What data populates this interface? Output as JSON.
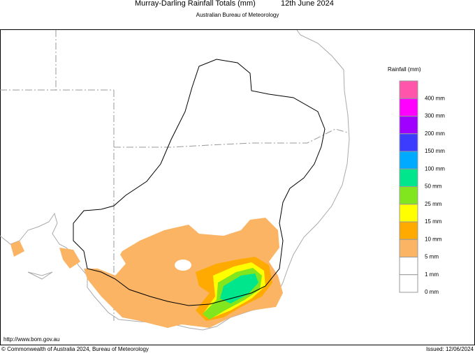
{
  "header": {
    "title": "Murray-Darling Rainfall Totals (mm)",
    "date": "12th June 2024",
    "subtitle": "Australian Bureau of Meteorology"
  },
  "legend": {
    "title": "Rainfall (mm)",
    "items": [
      {
        "label": "400 mm",
        "color": "#ff55aa"
      },
      {
        "label": "300 mm",
        "color": "#ff00ff"
      },
      {
        "label": "200 mm",
        "color": "#a000ff"
      },
      {
        "label": "150 mm",
        "color": "#3c3cff"
      },
      {
        "label": "100 mm",
        "color": "#00aaff"
      },
      {
        "label": "50 mm",
        "color": "#00e68c"
      },
      {
        "label": "25 mm",
        "color": "#82e61e"
      },
      {
        "label": "15 mm",
        "color": "#ffff00"
      },
      {
        "label": "10 mm",
        "color": "#ffaa00"
      },
      {
        "label": "5 mm",
        "color": "#fab464"
      },
      {
        "label": "1 mm",
        "color": "#ffffff"
      },
      {
        "label": "0 mm",
        "color": "#ffffff"
      }
    ]
  },
  "footer": {
    "url": "http://www.bom.gov.au",
    "copyright": "© Commonwealth of Australia 2024, Bureau of Meteorology",
    "issued": "Issued: 12/06/2024"
  }
}
